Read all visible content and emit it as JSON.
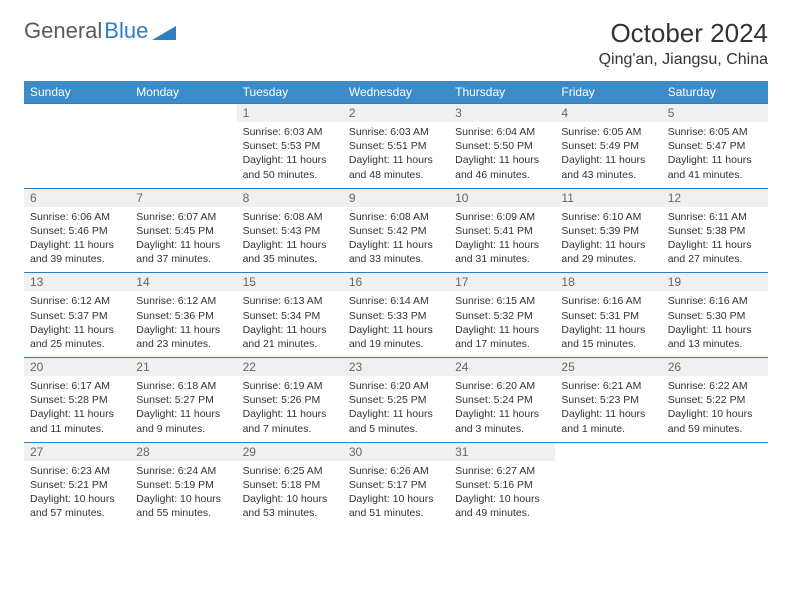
{
  "logo": {
    "text1": "General",
    "text2": "Blue"
  },
  "title": "October 2024",
  "location": "Qing'an, Jiangsu, China",
  "colors": {
    "header_bg": "#3b8bc9",
    "border": "#2d7fc1",
    "daynum_bg": "#eef0f2",
    "text": "#333333"
  },
  "day_names": [
    "Sunday",
    "Monday",
    "Tuesday",
    "Wednesday",
    "Thursday",
    "Friday",
    "Saturday"
  ],
  "weeks": [
    [
      {
        "empty": true
      },
      {
        "empty": true
      },
      {
        "n": "1",
        "sunrise": "6:03 AM",
        "sunset": "5:53 PM",
        "daylight": "11 hours and 50 minutes."
      },
      {
        "n": "2",
        "sunrise": "6:03 AM",
        "sunset": "5:51 PM",
        "daylight": "11 hours and 48 minutes."
      },
      {
        "n": "3",
        "sunrise": "6:04 AM",
        "sunset": "5:50 PM",
        "daylight": "11 hours and 46 minutes."
      },
      {
        "n": "4",
        "sunrise": "6:05 AM",
        "sunset": "5:49 PM",
        "daylight": "11 hours and 43 minutes."
      },
      {
        "n": "5",
        "sunrise": "6:05 AM",
        "sunset": "5:47 PM",
        "daylight": "11 hours and 41 minutes."
      }
    ],
    [
      {
        "n": "6",
        "sunrise": "6:06 AM",
        "sunset": "5:46 PM",
        "daylight": "11 hours and 39 minutes."
      },
      {
        "n": "7",
        "sunrise": "6:07 AM",
        "sunset": "5:45 PM",
        "daylight": "11 hours and 37 minutes."
      },
      {
        "n": "8",
        "sunrise": "6:08 AM",
        "sunset": "5:43 PM",
        "daylight": "11 hours and 35 minutes."
      },
      {
        "n": "9",
        "sunrise": "6:08 AM",
        "sunset": "5:42 PM",
        "daylight": "11 hours and 33 minutes."
      },
      {
        "n": "10",
        "sunrise": "6:09 AM",
        "sunset": "5:41 PM",
        "daylight": "11 hours and 31 minutes."
      },
      {
        "n": "11",
        "sunrise": "6:10 AM",
        "sunset": "5:39 PM",
        "daylight": "11 hours and 29 minutes."
      },
      {
        "n": "12",
        "sunrise": "6:11 AM",
        "sunset": "5:38 PM",
        "daylight": "11 hours and 27 minutes."
      }
    ],
    [
      {
        "n": "13",
        "sunrise": "6:12 AM",
        "sunset": "5:37 PM",
        "daylight": "11 hours and 25 minutes."
      },
      {
        "n": "14",
        "sunrise": "6:12 AM",
        "sunset": "5:36 PM",
        "daylight": "11 hours and 23 minutes."
      },
      {
        "n": "15",
        "sunrise": "6:13 AM",
        "sunset": "5:34 PM",
        "daylight": "11 hours and 21 minutes."
      },
      {
        "n": "16",
        "sunrise": "6:14 AM",
        "sunset": "5:33 PM",
        "daylight": "11 hours and 19 minutes."
      },
      {
        "n": "17",
        "sunrise": "6:15 AM",
        "sunset": "5:32 PM",
        "daylight": "11 hours and 17 minutes."
      },
      {
        "n": "18",
        "sunrise": "6:16 AM",
        "sunset": "5:31 PM",
        "daylight": "11 hours and 15 minutes."
      },
      {
        "n": "19",
        "sunrise": "6:16 AM",
        "sunset": "5:30 PM",
        "daylight": "11 hours and 13 minutes."
      }
    ],
    [
      {
        "n": "20",
        "sunrise": "6:17 AM",
        "sunset": "5:28 PM",
        "daylight": "11 hours and 11 minutes."
      },
      {
        "n": "21",
        "sunrise": "6:18 AM",
        "sunset": "5:27 PM",
        "daylight": "11 hours and 9 minutes."
      },
      {
        "n": "22",
        "sunrise": "6:19 AM",
        "sunset": "5:26 PM",
        "daylight": "11 hours and 7 minutes."
      },
      {
        "n": "23",
        "sunrise": "6:20 AM",
        "sunset": "5:25 PM",
        "daylight": "11 hours and 5 minutes."
      },
      {
        "n": "24",
        "sunrise": "6:20 AM",
        "sunset": "5:24 PM",
        "daylight": "11 hours and 3 minutes."
      },
      {
        "n": "25",
        "sunrise": "6:21 AM",
        "sunset": "5:23 PM",
        "daylight": "11 hours and 1 minute."
      },
      {
        "n": "26",
        "sunrise": "6:22 AM",
        "sunset": "5:22 PM",
        "daylight": "10 hours and 59 minutes."
      }
    ],
    [
      {
        "n": "27",
        "sunrise": "6:23 AM",
        "sunset": "5:21 PM",
        "daylight": "10 hours and 57 minutes."
      },
      {
        "n": "28",
        "sunrise": "6:24 AM",
        "sunset": "5:19 PM",
        "daylight": "10 hours and 55 minutes."
      },
      {
        "n": "29",
        "sunrise": "6:25 AM",
        "sunset": "5:18 PM",
        "daylight": "10 hours and 53 minutes."
      },
      {
        "n": "30",
        "sunrise": "6:26 AM",
        "sunset": "5:17 PM",
        "daylight": "10 hours and 51 minutes."
      },
      {
        "n": "31",
        "sunrise": "6:27 AM",
        "sunset": "5:16 PM",
        "daylight": "10 hours and 49 minutes."
      },
      {
        "empty": true
      },
      {
        "empty": true
      }
    ]
  ],
  "labels": {
    "sunrise": "Sunrise:",
    "sunset": "Sunset:",
    "daylight": "Daylight:"
  }
}
